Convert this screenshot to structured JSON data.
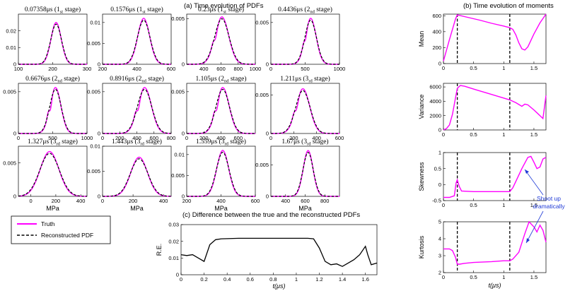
{
  "section_titles": {
    "a": "(a) Time evolution of PDFs",
    "b": "(b) Time evolution of moments",
    "c": "(c) Difference between the true and the reconstructed PDFs"
  },
  "legend": {
    "truth": "Truth",
    "reconstructed": "Reconstructed PDF"
  },
  "colors": {
    "truth": "#ff00ff",
    "reconstructed": "#000000",
    "annotation": "#1f3ad6",
    "diff": "#000000"
  },
  "annotation": {
    "line1": "Shoot up",
    "line2": "dramatically"
  },
  "chart_data": [
    {
      "type": "line",
      "title": "0.07358μs (1st stage)",
      "time": "0.07358μs",
      "ord": "1",
      "sub": "st",
      "mean": 210,
      "sd": 15,
      "amp": 0.025,
      "shoulder": 0,
      "xlim": [
        100,
        300
      ],
      "xticks": [
        100,
        200,
        300
      ],
      "ylim": [
        0,
        0.03
      ],
      "yticks": [
        0,
        0.01,
        0.02
      ],
      "xlabel": "",
      "ylabel": ""
    },
    {
      "type": "line",
      "title": "0.1576μs (1st stage)",
      "time": "0.1576μs",
      "ord": "1",
      "sub": "st",
      "mean": 440,
      "sd": 35,
      "amp": 0.011,
      "shoulder": 0,
      "xlim": [
        200,
        600
      ],
      "xticks": [
        200,
        400,
        600
      ],
      "ylim": [
        0,
        0.012
      ],
      "yticks": [
        0,
        0.005,
        0.01
      ],
      "xlabel": "",
      "ylabel": ""
    },
    {
      "type": "line",
      "title": "0.23μs (1st stage)",
      "time": "0.23μs",
      "ord": "1",
      "sub": "st",
      "mean": 610,
      "sd": 80,
      "amp": 0.0052,
      "shoulder": 0.2,
      "xlim": [
        200,
        1000
      ],
      "xticks": [
        400,
        600,
        800,
        1000
      ],
      "ylim": [
        0,
        0.0055
      ],
      "yticks": [
        0,
        0.005
      ],
      "xlabel": "",
      "ylabel": ""
    },
    {
      "type": "line",
      "title": "0.4436μs (2nd stage)",
      "time": "0.4436μs",
      "ord": "2",
      "sub": "nd",
      "mean": 580,
      "sd": 80,
      "amp": 0.0055,
      "shoulder": 0.2,
      "xlim": [
        0,
        1000
      ],
      "xticks": [
        0,
        500,
        1000
      ],
      "ylim": [
        0,
        0.006
      ],
      "yticks": [
        0,
        0.005
      ],
      "xlabel": "",
      "ylabel": ""
    },
    {
      "type": "line",
      "title": "0.6676μs (2nd stage)",
      "time": "0.6676μs",
      "ord": "2",
      "sub": "nd",
      "mean": 540,
      "sd": 80,
      "amp": 0.0055,
      "shoulder": 0.25,
      "xlim": [
        0,
        1000
      ],
      "xticks": [
        0,
        500,
        1000
      ],
      "ylim": [
        0,
        0.006
      ],
      "yticks": [
        0,
        0.005
      ],
      "xlabel": "",
      "ylabel": ""
    },
    {
      "type": "line",
      "title": "0.8916μs (2nd stage)",
      "time": "0.8916μs",
      "ord": "2",
      "sub": "nd",
      "mean": 490,
      "sd": 80,
      "amp": 0.0055,
      "shoulder": 0.25,
      "xlim": [
        0,
        800
      ],
      "xticks": [
        0,
        200,
        400,
        600,
        800
      ],
      "ylim": [
        0,
        0.006
      ],
      "yticks": [
        0,
        0.005
      ],
      "xlabel": "",
      "ylabel": ""
    },
    {
      "type": "line",
      "title": "1.105μs (2nd stage)",
      "time": "1.105μs",
      "ord": "2",
      "sub": "nd",
      "mean": 420,
      "sd": 75,
      "amp": 0.0055,
      "shoulder": 0.25,
      "xlim": [
        0,
        800
      ],
      "xticks": [
        0,
        200,
        400,
        600
      ],
      "ylim": [
        0,
        0.006
      ],
      "yticks": [
        0,
        0.005
      ],
      "xlabel": "",
      "ylabel": ""
    },
    {
      "type": "line",
      "title": "1.211μs (3rd stage)",
      "time": "1.211μs",
      "ord": "3",
      "sub": "rd",
      "mean": 280,
      "sd": 60,
      "amp": 0.0058,
      "shoulder": 0.2,
      "xlim": [
        0,
        600
      ],
      "xticks": [
        0,
        200,
        400,
        600
      ],
      "ylim": [
        0,
        0.0065
      ],
      "yticks": [
        0,
        0.005
      ],
      "xlabel": "",
      "ylabel": ""
    },
    {
      "type": "line",
      "title": "1.327μs (3rd stage)",
      "time": "1.327μs",
      "ord": "3",
      "sub": "rd",
      "mean": 150,
      "sd": 75,
      "amp": 0.0067,
      "shoulder": 0,
      "xlim": [
        -100,
        450
      ],
      "xticks": [
        0,
        200,
        400
      ],
      "ylim": [
        0,
        0.0075
      ],
      "yticks": [
        0,
        0.005
      ],
      "xlabel": "MPa",
      "ylabel": ""
    },
    {
      "type": "line",
      "title": "1.443μs (3rd stage)",
      "time": "1.443μs",
      "ord": "3",
      "sub": "rd",
      "mean": 240,
      "sd": 55,
      "amp": 0.0078,
      "shoulder": 0,
      "xlim": [
        0,
        450
      ],
      "xticks": [
        0,
        200,
        400
      ],
      "ylim": [
        0,
        0.01
      ],
      "yticks": [
        0,
        0.005,
        0.01
      ],
      "xlabel": "MPa",
      "ylabel": ""
    },
    {
      "type": "line",
      "title": "1.559μs (3rd stage)",
      "time": "1.559μs",
      "ord": "3",
      "sub": "rd",
      "mean": 410,
      "sd": 35,
      "amp": 0.011,
      "shoulder": 0,
      "xlim": [
        200,
        600
      ],
      "xticks": [
        200,
        400,
        600
      ],
      "ylim": [
        0,
        0.012
      ],
      "yticks": [
        0,
        0.005,
        0.01
      ],
      "xlabel": "MPa",
      "ylabel": ""
    },
    {
      "type": "line",
      "title": "1.67μs (3rd stage)",
      "time": "1.67μs",
      "ord": "3",
      "sub": "rd",
      "mean": 630,
      "sd": 50,
      "amp": 0.0073,
      "shoulder": 0,
      "xlim": [
        250,
        950
      ],
      "xticks": [
        400,
        600,
        800
      ],
      "ylim": [
        0,
        0.008
      ],
      "yticks": [
        0,
        0.005
      ],
      "xlabel": "MPa",
      "ylabel": ""
    },
    {
      "type": "line",
      "title": "",
      "ylabel": "Mean",
      "xlabel": "",
      "xlim": [
        0,
        1.7
      ],
      "ylim": [
        0,
        620
      ],
      "yticks": [
        0,
        200,
        400,
        600
      ],
      "xticks": [
        0,
        0.5,
        1,
        1.5
      ],
      "x": [
        0,
        0.1,
        0.2,
        0.23,
        0.4,
        0.6,
        0.8,
        1.0,
        1.1,
        1.15,
        1.2,
        1.25,
        1.3,
        1.35,
        1.4,
        1.5,
        1.6,
        1.7
      ],
      "y": [
        30,
        300,
        560,
        610,
        580,
        545,
        505,
        470,
        450,
        430,
        360,
        260,
        185,
        170,
        210,
        370,
        510,
        620
      ],
      "vlines": [
        0.23,
        1.1
      ]
    },
    {
      "type": "line",
      "title": "",
      "ylabel": "Variance",
      "xlabel": "",
      "xlim": [
        0,
        1.7
      ],
      "ylim": [
        0,
        6500
      ],
      "yticks": [
        0,
        2000,
        4000,
        6000
      ],
      "xticks": [
        0,
        0.5,
        1,
        1.5
      ],
      "x": [
        0,
        0.05,
        0.1,
        0.15,
        0.2,
        0.23,
        0.28,
        0.35,
        0.5,
        0.7,
        0.9,
        1.1,
        1.2,
        1.3,
        1.35,
        1.4,
        1.5,
        1.6,
        1.65,
        1.7
      ],
      "y": [
        0,
        200,
        700,
        2200,
        4500,
        5800,
        6200,
        6100,
        5700,
        5200,
        4700,
        4200,
        3800,
        3300,
        3600,
        3500,
        2800,
        2000,
        1600,
        4800
      ],
      "vlines": [
        0.23,
        1.1
      ]
    },
    {
      "type": "line",
      "title": "",
      "ylabel": "Skewness",
      "xlabel": "",
      "xlim": [
        0,
        1.7
      ],
      "ylim": [
        -0.5,
        1
      ],
      "yticks": [
        -0.5,
        0,
        0.5,
        1
      ],
      "xticks": [
        0,
        0.5,
        1,
        1.5
      ],
      "x": [
        0,
        0.1,
        0.18,
        0.21,
        0.23,
        0.26,
        0.3,
        0.5,
        0.8,
        1.1,
        1.15,
        1.2,
        1.3,
        1.4,
        1.45,
        1.5,
        1.55,
        1.6,
        1.65,
        1.7
      ],
      "y": [
        -0.4,
        -0.4,
        -0.35,
        0.05,
        0.15,
        -0.05,
        -0.2,
        -0.22,
        -0.22,
        -0.22,
        -0.1,
        0.1,
        0.5,
        0.85,
        0.88,
        0.7,
        0.5,
        0.55,
        0.8,
        0.85
      ],
      "vlines": [
        0.23,
        1.1
      ]
    },
    {
      "type": "line",
      "title": "",
      "ylabel": "Kurtosis",
      "xlabel": "t(μs)",
      "xlim": [
        0,
        1.7
      ],
      "ylim": [
        2,
        5
      ],
      "yticks": [
        2,
        3,
        4,
        5
      ],
      "xticks": [
        0,
        0.5,
        1,
        1.5
      ],
      "x": [
        0,
        0.1,
        0.15,
        0.2,
        0.23,
        0.27,
        0.35,
        0.5,
        0.8,
        1.0,
        1.1,
        1.15,
        1.25,
        1.35,
        1.42,
        1.5,
        1.55,
        1.6,
        1.65,
        1.7
      ],
      "y": [
        3.4,
        3.4,
        3.3,
        2.9,
        2.5,
        2.5,
        2.55,
        2.6,
        2.65,
        2.7,
        2.7,
        2.8,
        3.2,
        4.3,
        5.0,
        4.7,
        4.4,
        4.8,
        4.5,
        3.8
      ],
      "vlines": [
        0.23,
        1.1
      ]
    },
    {
      "type": "line",
      "title": "",
      "ylabel": "R.E.",
      "xlabel": "t(μs)",
      "xlim": [
        0,
        1.7
      ],
      "ylim": [
        0,
        0.03
      ],
      "yticks": [
        0,
        0.01,
        0.02,
        0.03
      ],
      "xticks": [
        0,
        0.2,
        0.4,
        0.6,
        0.8,
        1,
        1.2,
        1.4,
        1.6
      ],
      "x": [
        0,
        0.05,
        0.1,
        0.15,
        0.2,
        0.25,
        0.3,
        0.35,
        0.5,
        0.8,
        1.0,
        1.1,
        1.15,
        1.2,
        1.25,
        1.3,
        1.35,
        1.4,
        1.45,
        1.5,
        1.55,
        1.6,
        1.62,
        1.65,
        1.7
      ],
      "y": [
        0.012,
        0.0115,
        0.012,
        0.01,
        0.008,
        0.018,
        0.021,
        0.0215,
        0.0218,
        0.0218,
        0.0218,
        0.0218,
        0.0215,
        0.016,
        0.008,
        0.006,
        0.0065,
        0.005,
        0.007,
        0.009,
        0.012,
        0.017,
        0.012,
        0.006,
        0.007
      ],
      "vlines": []
    }
  ]
}
